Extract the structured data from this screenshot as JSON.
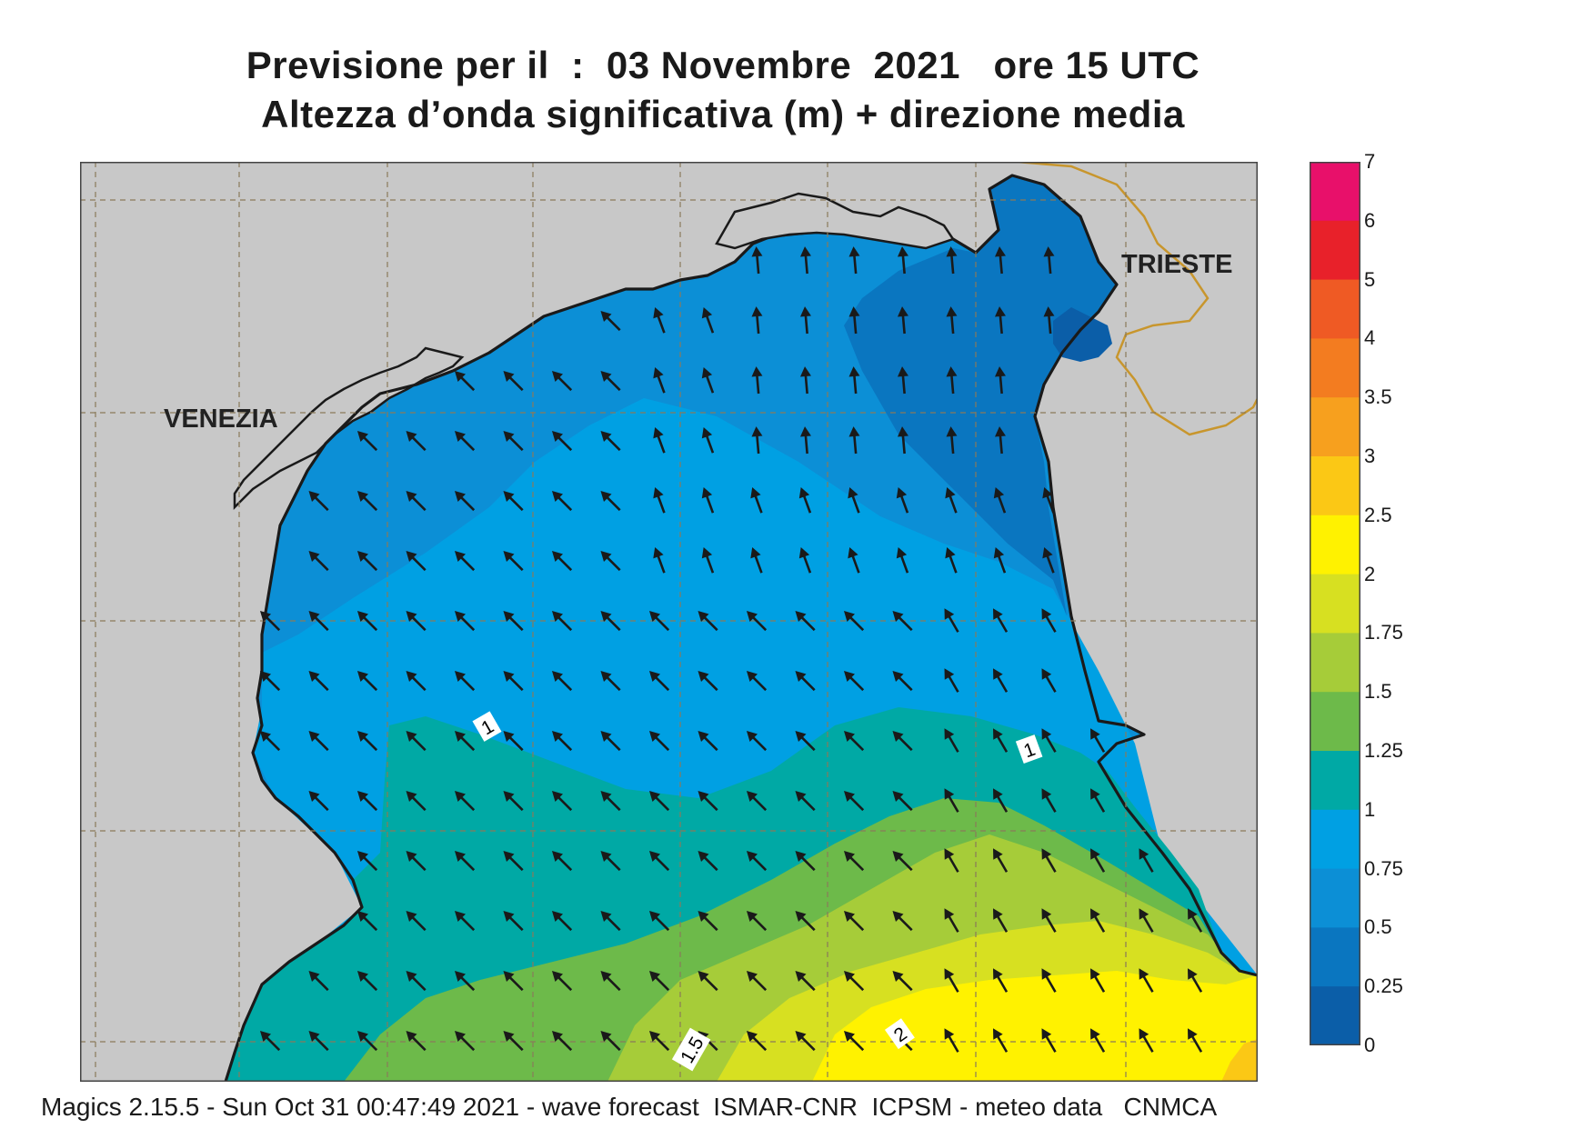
{
  "title": {
    "line1": "Previsione per il  :  03 Novembre  2021   ore 15 UTC",
    "line2": "Altezza d’onda significativa (m) + direzione media"
  },
  "map": {
    "cities": [
      {
        "id": "venezia",
        "name": "VENEZIA"
      },
      {
        "id": "trieste",
        "name": "TRIESTE"
      }
    ],
    "contour_labels": [
      "1",
      "1",
      "1.5",
      "2"
    ],
    "land_color": "#c8c8c8",
    "coast_color": "#1a1a1a",
    "border_color": "#c8962d",
    "arrow_color": "#1a1a1a",
    "arrow_direction": "towards NW / N"
  },
  "legend": {
    "unit": "m",
    "levels": [
      {
        "label": "7",
        "color": "#e8106a"
      },
      {
        "label": "6",
        "color": "#e8212a"
      },
      {
        "label": "5",
        "color": "#ef5a24"
      },
      {
        "label": "4",
        "color": "#f37c20"
      },
      {
        "label": "3.5",
        "color": "#f7a01e"
      },
      {
        "label": "3",
        "color": "#fbc815"
      },
      {
        "label": "2.5",
        "color": "#fff200"
      },
      {
        "label": "2",
        "color": "#d7e021"
      },
      {
        "label": "1.75",
        "color": "#a6cc39"
      },
      {
        "label": "1.5",
        "color": "#6dba4a"
      },
      {
        "label": "1.25",
        "color": "#00a9a5"
      },
      {
        "label": "1",
        "color": "#00a0e3"
      },
      {
        "label": "0.75",
        "color": "#0c8fd6"
      },
      {
        "label": "0.5",
        "color": "#0a76c0"
      },
      {
        "label": "0.25",
        "color": "#0b5ea8"
      },
      {
        "label": "0",
        "color": ""
      }
    ]
  },
  "footer": "Magics 2.15.5 - Sun Oct 31 00:47:49 2021 - wave forecast  ISMAR-CNR  ICPSM - meteo data   CNMCA"
}
